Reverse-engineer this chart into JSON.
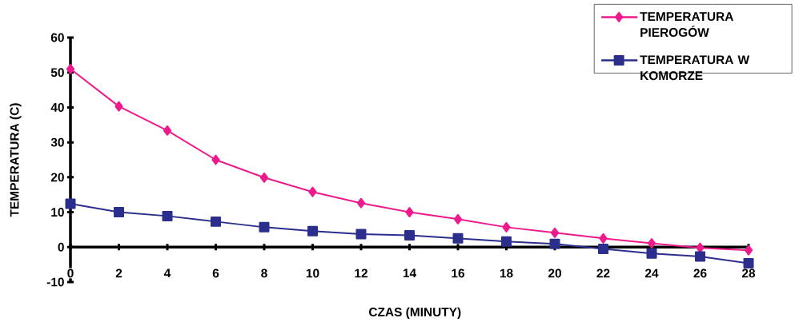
{
  "chart_data": {
    "type": "line",
    "xlabel": "CZAS (MINUTY)",
    "ylabel": "TEMPERATURA (C)",
    "x": [
      0,
      2,
      4,
      6,
      8,
      10,
      12,
      14,
      16,
      18,
      20,
      22,
      24,
      26,
      28
    ],
    "series": [
      {
        "name": "TEMPERATURA PIEROGÓW",
        "color": "#ee1a8c",
        "marker": "diamond",
        "values": [
          51,
          40.3,
          33.4,
          25,
          19.9,
          15.8,
          12.6,
          10,
          8,
          5.7,
          4.1,
          2.5,
          1.1,
          -0.2,
          -0.9
        ]
      },
      {
        "name": "TEMPERATURA W KOMORZE",
        "color": "#2b2e8c",
        "marker": "square",
        "values": [
          12.4,
          10,
          8.9,
          7.3,
          5.7,
          4.6,
          3.7,
          3.4,
          2.5,
          1.6,
          0.9,
          -0.5,
          -1.8,
          -2.7,
          -4.6
        ]
      }
    ],
    "xlim": [
      0,
      28
    ],
    "xticks": [
      0,
      2,
      4,
      6,
      8,
      10,
      12,
      14,
      16,
      18,
      20,
      22,
      24,
      26,
      28
    ],
    "ylim": [
      -10,
      60
    ],
    "yticks": [
      -10,
      0,
      10,
      20,
      30,
      40,
      50,
      60
    ],
    "legend": "top right",
    "grid": false,
    "line_style": "solid"
  }
}
